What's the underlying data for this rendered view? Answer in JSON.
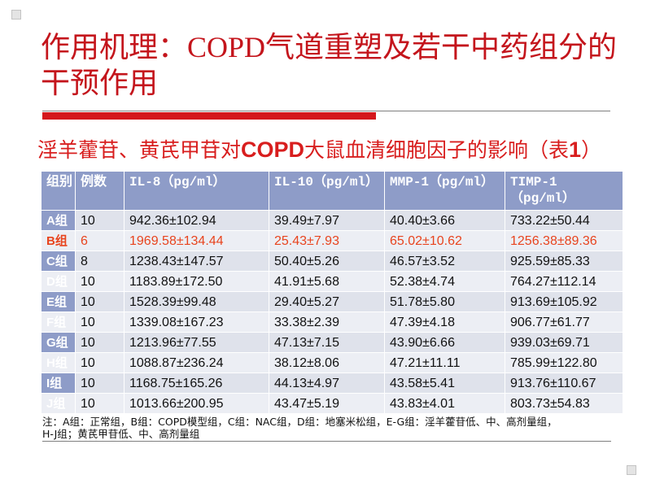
{
  "slide": {
    "title": {
      "line1": "作用机理：COPD气道重塑及若干中药组分的",
      "line2": "干预作用"
    },
    "subtitle": {
      "part1": "淫羊藿苷、黄芪甲苷对",
      "part2": "COPD",
      "part3": "大鼠血清细胞因子的影响（表",
      "part4": "1",
      "part5": "）"
    },
    "table": {
      "headers": {
        "group": "组别",
        "n": "例数",
        "il8": "IL-8（pg/ml）",
        "il10": "IL-10（pg/ml）",
        "mmp1": "MMP-1（pg/ml）",
        "timp1_line1": "TIMP-1",
        "timp1_line2": "（pg/ml）"
      },
      "rows": [
        {
          "group": "A组",
          "n": "10",
          "il8": "942.36±102.94",
          "il10": "39.49±7.97",
          "mmp1": "40.40±3.66",
          "timp1": "733.22±50.44"
        },
        {
          "group": "B组",
          "n": "6",
          "il8": "1969.58±134.44",
          "il10": "25.43±7.93",
          "mmp1": "65.02±10.62",
          "timp1": "1256.38±89.36",
          "highlight": true
        },
        {
          "group": "C组",
          "n": "8",
          "il8": "1238.43±147.57",
          "il10": "50.40±5.26",
          "mmp1": "46.57±3.52",
          "timp1": "925.59±85.33"
        },
        {
          "group": "D组",
          "n": "10",
          "il8": "1183.89±172.50",
          "il10": "41.91±5.68",
          "mmp1": "52.38±4.74",
          "timp1": "764.27±112.14"
        },
        {
          "group": "E组",
          "n": "10",
          "il8": "1528.39±99.48",
          "il10": "29.40±5.27",
          "mmp1": "51.78±5.80",
          "timp1": "913.69±105.92"
        },
        {
          "group": "F组",
          "n": "10",
          "il8": "1339.08±167.23",
          "il10": "33.38±2.39",
          "mmp1": "47.39±4.18",
          "timp1": "906.77±61.77"
        },
        {
          "group": "G组",
          "n": "10",
          "il8": "1213.96±77.55",
          "il10": "47.13±7.15",
          "mmp1": "43.90±6.66",
          "timp1": "939.03±69.71"
        },
        {
          "group": "H组",
          "n": "10",
          "il8": "1088.87±236.24",
          "il10": "38.12±8.06",
          "mmp1": "47.21±11.11",
          "timp1": "785.99±122.80"
        },
        {
          "group": "I组",
          "n": "10",
          "il8": "1168.75±165.26",
          "il10": "44.13±4.97",
          "mmp1": "43.58±5.41",
          "timp1": "913.76±110.67"
        },
        {
          "group": "J组",
          "n": "10",
          "il8": "1013.66±200.95",
          "il10": "43.47±5.19",
          "mmp1": "43.83±4.01",
          "timp1": "803.73±54.83"
        }
      ]
    },
    "note": {
      "line1": "注：A组：正常组，B组：COPD模型组，C组：NAC组，D组：地塞米松组，E-G组：淫羊藿苷低、中、高剂量组，",
      "line2": "H-J组；黄芪甲苷低、中、高剂量组"
    },
    "colors": {
      "title": "#c4151c",
      "subtitle": "#d81e1e",
      "accent_bar": "#d4171c",
      "table_header": "#8e9cc8",
      "cell": "#dfe2eb",
      "cell_alt": "#eceef4",
      "highlight_row": "#e8441e"
    }
  }
}
